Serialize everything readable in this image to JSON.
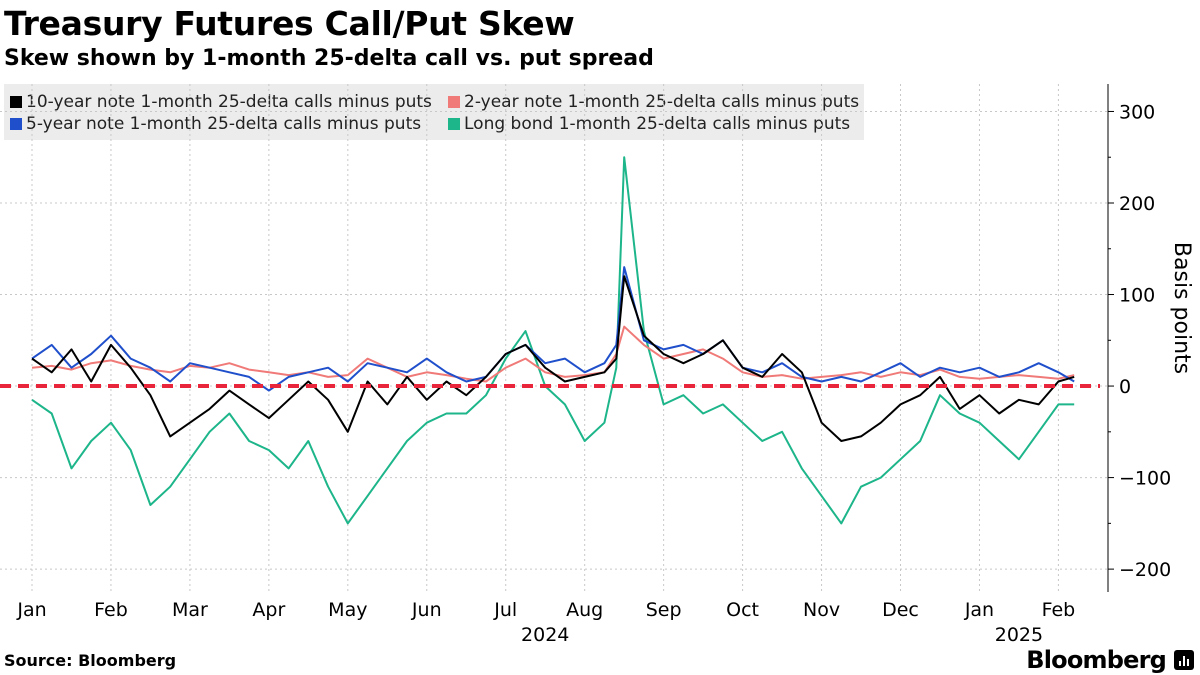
{
  "header": {
    "title": "Treasury Futures Call/Put Skew",
    "subtitle": "Skew shown by 1-month 25-delta call vs. put spread"
  },
  "footer": {
    "source": "Source: Bloomberg",
    "brand": "Bloomberg"
  },
  "chart_data": {
    "type": "line",
    "title": "Treasury Futures Call/Put Skew",
    "subtitle": "Skew shown by 1-month 25-delta call vs. put spread",
    "ylabel": "Basis points",
    "ylim": [
      -225,
      330
    ],
    "yticks": [
      300,
      200,
      100,
      0,
      -100,
      -200
    ],
    "ytick_labels": [
      "300",
      "200",
      "100",
      "0",
      "−100",
      "−200"
    ],
    "xlim": [
      0,
      13.4
    ],
    "xtick_labels": [
      "Jan",
      "Feb",
      "Mar",
      "Apr",
      "May",
      "Jun",
      "Jul",
      "Aug",
      "Sep",
      "Oct",
      "Nov",
      "Dec",
      "Jan",
      "Feb"
    ],
    "year_labels": [
      {
        "label": "2024",
        "x": 6.5
      },
      {
        "label": "2025",
        "x": 12.5
      }
    ],
    "reference_line": {
      "y": 0,
      "color": "#e8253a",
      "style": "dashed"
    },
    "grid": true,
    "legend_position": "top-left",
    "x": [
      0.0,
      0.25,
      0.5,
      0.75,
      1.0,
      1.25,
      1.5,
      1.75,
      2.0,
      2.25,
      2.5,
      2.75,
      3.0,
      3.25,
      3.5,
      3.75,
      4.0,
      4.25,
      4.5,
      4.75,
      5.0,
      5.25,
      5.5,
      5.75,
      6.0,
      6.25,
      6.5,
      6.75,
      7.0,
      7.25,
      7.4,
      7.5,
      7.75,
      8.0,
      8.25,
      8.5,
      8.75,
      9.0,
      9.25,
      9.5,
      9.75,
      10.0,
      10.25,
      10.5,
      10.75,
      11.0,
      11.25,
      11.5,
      11.75,
      12.0,
      12.25,
      12.5,
      12.75,
      13.0,
      13.2
    ],
    "series": [
      {
        "name": "10-year note 1-month 25-delta calls minus puts",
        "color": "#000000",
        "values": [
          30,
          15,
          40,
          5,
          45,
          20,
          -10,
          -55,
          -40,
          -25,
          -5,
          -20,
          -35,
          -15,
          5,
          -15,
          -50,
          5,
          -20,
          10,
          -15,
          5,
          -10,
          10,
          35,
          45,
          20,
          5,
          10,
          15,
          30,
          120,
          55,
          35,
          25,
          35,
          50,
          20,
          10,
          35,
          15,
          -40,
          -60,
          -55,
          -40,
          -20,
          -10,
          10,
          -25,
          -10,
          -30,
          -15,
          -20,
          5,
          10
        ]
      },
      {
        "name": "2-year note 1-month 25-delta calls minus puts",
        "color": "#f07a78",
        "values": [
          20,
          22,
          18,
          25,
          28,
          22,
          18,
          15,
          22,
          20,
          25,
          18,
          15,
          12,
          15,
          10,
          12,
          30,
          20,
          10,
          15,
          12,
          8,
          5,
          20,
          30,
          15,
          10,
          12,
          15,
          35,
          65,
          45,
          30,
          35,
          40,
          30,
          15,
          10,
          12,
          8,
          10,
          12,
          15,
          10,
          15,
          12,
          18,
          10,
          8,
          10,
          12,
          10,
          8,
          12
        ]
      },
      {
        "name": "5-year note 1-month 25-delta calls minus puts",
        "color": "#1f4fcb",
        "values": [
          30,
          45,
          20,
          35,
          55,
          30,
          20,
          5,
          25,
          20,
          15,
          10,
          -5,
          10,
          15,
          20,
          5,
          25,
          20,
          15,
          30,
          15,
          5,
          10,
          35,
          45,
          25,
          30,
          15,
          25,
          45,
          130,
          50,
          40,
          45,
          35,
          50,
          20,
          15,
          25,
          10,
          5,
          10,
          5,
          15,
          25,
          10,
          20,
          15,
          20,
          10,
          15,
          25,
          15,
          5
        ]
      },
      {
        "name": "Long bond 1-month 25-delta calls minus puts",
        "color": "#1db58a",
        "values": [
          -15,
          -30,
          -90,
          -60,
          -40,
          -70,
          -130,
          -110,
          -80,
          -50,
          -30,
          -60,
          -70,
          -90,
          -60,
          -110,
          -150,
          -120,
          -90,
          -60,
          -40,
          -30,
          -30,
          -10,
          30,
          60,
          0,
          -20,
          -60,
          -40,
          20,
          250,
          60,
          -20,
          -10,
          -30,
          -20,
          -40,
          -60,
          -50,
          -90,
          -120,
          -150,
          -110,
          -100,
          -80,
          -60,
          -10,
          -30,
          -40,
          -60,
          -80,
          -50,
          -20,
          -20
        ]
      }
    ]
  }
}
